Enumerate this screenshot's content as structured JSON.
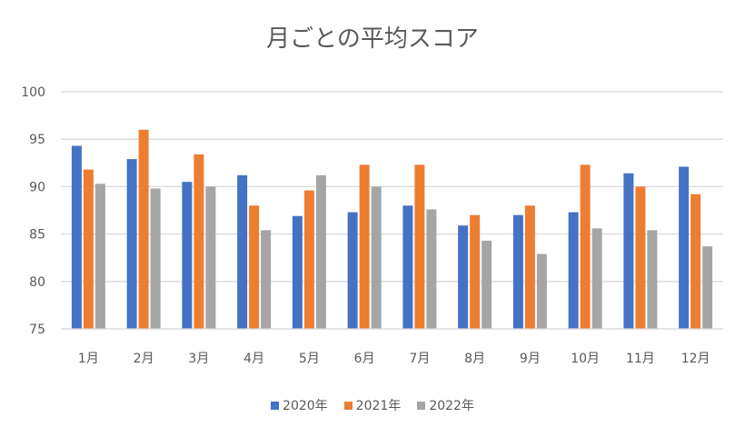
{
  "chart_data": {
    "type": "bar",
    "title": "月ごとの平均スコア",
    "categories": [
      "1月",
      "2月",
      "3月",
      "4月",
      "5月",
      "6月",
      "7月",
      "8月",
      "9月",
      "10月",
      "11月",
      "12月"
    ],
    "series": [
      {
        "name": "2020年",
        "color": "#4472C4",
        "values": [
          94.3,
          92.9,
          90.5,
          91.2,
          86.9,
          87.3,
          88.0,
          85.9,
          87.0,
          87.3,
          91.4,
          92.1
        ]
      },
      {
        "name": "2021年",
        "color": "#ED7D31",
        "values": [
          91.8,
          96.0,
          93.4,
          88.0,
          89.6,
          92.3,
          92.3,
          87.0,
          88.0,
          92.3,
          90.0,
          89.2
        ]
      },
      {
        "name": "2022年",
        "color": "#A5A5A5",
        "values": [
          90.3,
          89.8,
          90.0,
          85.4,
          91.2,
          90.0,
          87.6,
          84.3,
          82.9,
          85.6,
          85.4,
          83.7
        ]
      }
    ],
    "ylim": [
      75,
      100
    ],
    "yticks": [
      75,
      80,
      85,
      90,
      95,
      100
    ],
    "grid": true,
    "legend": "bottom"
  }
}
